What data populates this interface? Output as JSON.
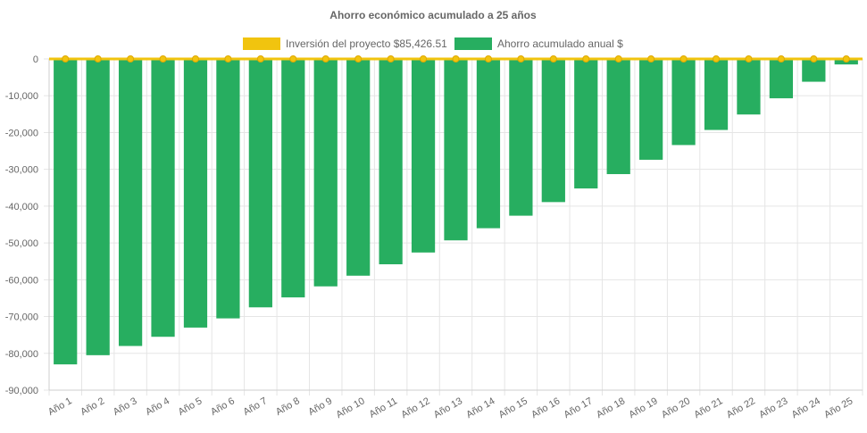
{
  "chart_data": {
    "type": "bar",
    "title": "Ahorro económico acumulado a 25 años",
    "categories": [
      "Año 1",
      "Año 2",
      "Año 3",
      "Año 4",
      "Año 5",
      "Año 6",
      "Año 7",
      "Año 8",
      "Año 9",
      "Año 10",
      "Año 11",
      "Año 12",
      "Año 13",
      "Año 14",
      "Año 15",
      "Año 16",
      "Año 17",
      "Año 18",
      "Año 19",
      "Año 20",
      "Año 21",
      "Año 22",
      "Año 23",
      "Año 24",
      "Año 25"
    ],
    "series": [
      {
        "name": "Inversión del proyecto $85,426.51",
        "kind": "line",
        "color": "#f1c40f",
        "values": [
          0,
          0,
          0,
          0,
          0,
          0,
          0,
          0,
          0,
          0,
          0,
          0,
          0,
          0,
          0,
          0,
          0,
          0,
          0,
          0,
          0,
          0,
          0,
          0,
          0
        ]
      },
      {
        "name": "Ahorro acumulado anual $",
        "kind": "bar",
        "color": "#27ae60",
        "values": [
          -83000,
          -80500,
          -78000,
          -75500,
          -73000,
          -70500,
          -67500,
          -64800,
          -61800,
          -58900,
          -55800,
          -52600,
          -49300,
          -46000,
          -42600,
          -38900,
          -35200,
          -31300,
          -27400,
          -23400,
          -19300,
          -15100,
          -10700,
          -6200,
          -1500
        ]
      }
    ],
    "ylim": [
      -90000,
      0
    ],
    "yticks": [
      0,
      -10000,
      -20000,
      -30000,
      -40000,
      -50000,
      -60000,
      -70000,
      -80000,
      -90000
    ],
    "ytick_labels": [
      "0",
      "-10,000",
      "-20,000",
      "-30,000",
      "-40,000",
      "-50,000",
      "-60,000",
      "-70,000",
      "-80,000",
      "-90,000"
    ],
    "legend_position": "top-center",
    "grid": true
  }
}
